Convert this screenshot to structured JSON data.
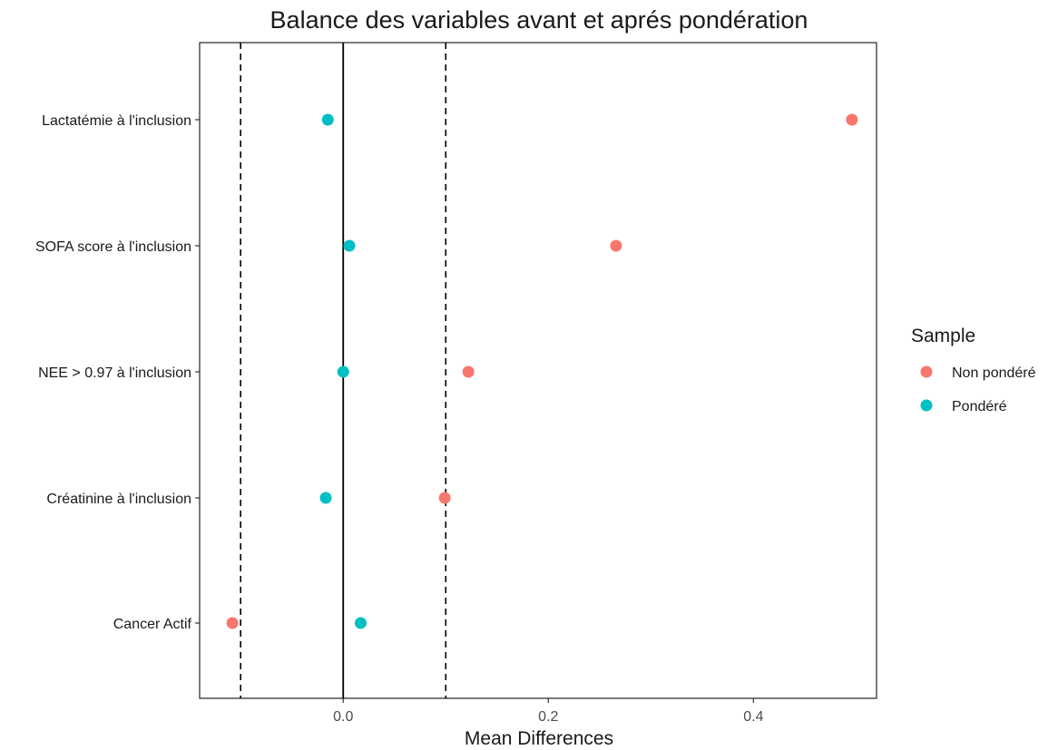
{
  "chart_data": {
    "type": "scatter",
    "title": "Balance des variables avant et aprés pondération",
    "xlabel": "Mean Differences",
    "ylabel": "",
    "xlim": [
      -0.14,
      0.52
    ],
    "xticks": [
      "0.0",
      "0.2",
      "0.4"
    ],
    "xtick_values": [
      0.0,
      0.2,
      0.4
    ],
    "categories": [
      "Lactatémie à l'inclusion",
      "SOFA score à l'inclusion",
      "NEE > 0.97 à l'inclusion",
      "Créatinine à l'inclusion",
      "Cancer Actif"
    ],
    "series": [
      {
        "name": "Non pondéré",
        "color": "#F8766D",
        "values": [
          0.496,
          0.266,
          0.122,
          0.099,
          -0.108
        ]
      },
      {
        "name": "Pondéré",
        "color": "#00BFC4",
        "values": [
          -0.015,
          0.006,
          0.0,
          -0.017,
          0.017
        ]
      }
    ],
    "reference_lines": [
      {
        "x": 0.0,
        "style": "solid"
      },
      {
        "x": -0.1,
        "style": "dashed"
      },
      {
        "x": 0.1,
        "style": "dashed"
      }
    ],
    "legend": {
      "title": "Sample",
      "position": "right"
    },
    "grid": false
  }
}
